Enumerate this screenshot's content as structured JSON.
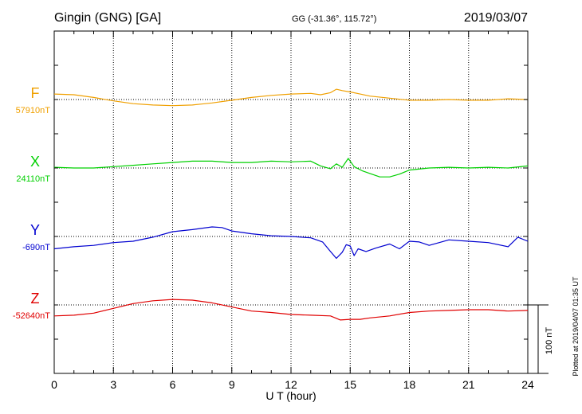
{
  "chart_data": {
    "type": "line",
    "title": "Gingin (GNG)  [GA]",
    "coords": "GG (-31.36°, 115.72°)",
    "date": "2019/03/07",
    "xlabel": "U T (hour)",
    "xlim": [
      0,
      24
    ],
    "xticks": [
      "0",
      "3",
      "6",
      "9",
      "12",
      "15",
      "18",
      "21",
      "24"
    ],
    "scale_label": "100 nT",
    "plotted_note": "Plotted at 2019/04/07 01:35 UT",
    "grid": true,
    "series": [
      {
        "name": "F",
        "color": "#f0a000",
        "baseline_label": "57910nT",
        "baseline_nT": 57910,
        "x": [
          0,
          1,
          2,
          3,
          4,
          5,
          6,
          7,
          8,
          9,
          10,
          11,
          12,
          13,
          13.5,
          14,
          14.3,
          14.6,
          15,
          15.5,
          16,
          17,
          18,
          19,
          20,
          21,
          22,
          23,
          24
        ],
        "y": [
          57918,
          57917,
          57913,
          57908,
          57904,
          57902,
          57901,
          57902,
          57905,
          57909,
          57913,
          57916,
          57918,
          57919,
          57917,
          57920,
          57925,
          57923,
          57921,
          57918,
          57915,
          57912,
          57909,
          57909,
          57910,
          57909,
          57909,
          57911,
          57910
        ]
      },
      {
        "name": "X",
        "color": "#00d000",
        "baseline_label": "24110nT",
        "baseline_nT": 24110,
        "x": [
          0,
          1,
          2,
          3,
          4,
          5,
          6,
          7,
          8,
          9,
          10,
          11,
          12,
          13,
          13.5,
          14,
          14.3,
          14.6,
          14.9,
          15.2,
          15.6,
          16,
          16.5,
          17,
          17.5,
          18,
          19,
          20,
          21,
          22,
          23,
          24
        ],
        "y": [
          24111,
          24110,
          24110,
          24112,
          24114,
          24116,
          24118,
          24120,
          24120,
          24118,
          24118,
          24120,
          24119,
          24120,
          24113,
          24109,
          24116,
          24111,
          24124,
          24112,
          24106,
          24102,
          24097,
          24097,
          24101,
          24107,
          24110,
          24111,
          24110,
          24111,
          24110,
          24113
        ]
      },
      {
        "name": "Y",
        "color": "#0000d0",
        "baseline_label": "-690nT",
        "baseline_nT": -690,
        "x": [
          0,
          1,
          2,
          3,
          4,
          5,
          6,
          7,
          8,
          8.5,
          9,
          10,
          11,
          12,
          13,
          13.6,
          14,
          14.3,
          14.6,
          14.8,
          15,
          15.2,
          15.4,
          15.8,
          16.3,
          17,
          17.5,
          18,
          18.5,
          19,
          20,
          21,
          22,
          23,
          23.5,
          24
        ],
        "y": [
          -708,
          -705,
          -703,
          -699,
          -697,
          -691,
          -683,
          -680,
          -676,
          -677,
          -682,
          -686,
          -689,
          -690,
          -692,
          -698,
          -712,
          -722,
          -713,
          -702,
          -704,
          -718,
          -708,
          -712,
          -707,
          -701,
          -708,
          -697,
          -698,
          -703,
          -695,
          -697,
          -699,
          -705,
          -691,
          -697
        ]
      },
      {
        "name": "Z",
        "color": "#e00000",
        "baseline_label": "-52640nT",
        "baseline_nT": -52640,
        "x": [
          0,
          1,
          2,
          3,
          4,
          5,
          6,
          7,
          8,
          9,
          10,
          11,
          12,
          13,
          14,
          14.5,
          15,
          15.5,
          16,
          17,
          18,
          19,
          20,
          21,
          22,
          23,
          24
        ],
        "y": [
          -52656,
          -52655,
          -52652,
          -52645,
          -52638,
          -52634,
          -52632,
          -52633,
          -52637,
          -52643,
          -52649,
          -52651,
          -52654,
          -52655,
          -52656,
          -52662,
          -52661,
          -52661,
          -52659,
          -52656,
          -52651,
          -52649,
          -52648,
          -52647,
          -52647,
          -52649,
          -52648
        ]
      }
    ]
  }
}
